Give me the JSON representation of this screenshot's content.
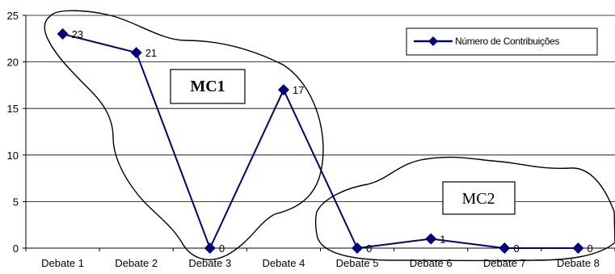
{
  "chart_data": {
    "type": "line",
    "categories": [
      "Debate 1",
      "Debate 2",
      "Debate 3",
      "Debate 4",
      "Debate 5",
      "Debate 6",
      "Debate 7",
      "Debate 8"
    ],
    "series": [
      {
        "name": "Número de Contribuições",
        "values": [
          23,
          21,
          0,
          17,
          0,
          1,
          0,
          0
        ]
      }
    ],
    "data_labels": [
      "23",
      "21",
      "0",
      "17",
      "0",
      "1",
      "0",
      "0"
    ],
    "y_ticks": [
      "0",
      "5",
      "10",
      "15",
      "20",
      "25"
    ],
    "ylim": [
      0,
      25
    ],
    "grid": true,
    "legend_position": "top-right",
    "series_color": "#000080",
    "annotations": [
      {
        "label": "MC1"
      },
      {
        "label": "MC2"
      }
    ]
  }
}
